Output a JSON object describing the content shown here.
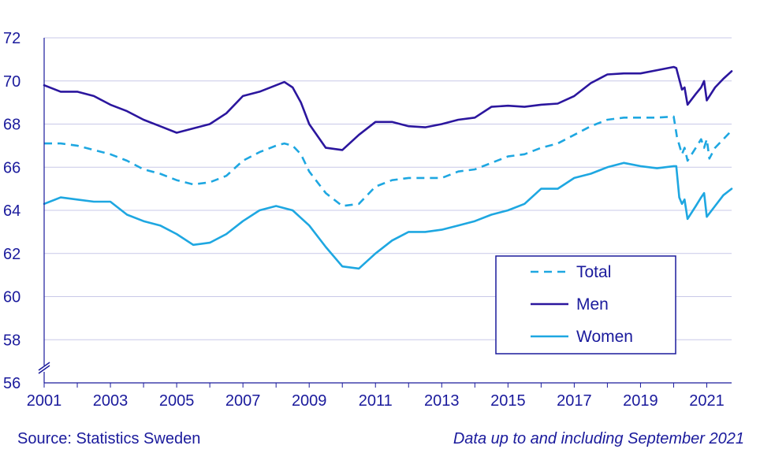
{
  "chart_data": {
    "type": "line",
    "title": "",
    "xlabel": "",
    "ylabel": "",
    "ylim": [
      56,
      72
    ],
    "xlim": [
      2001,
      2021.75
    ],
    "y_ticks": [
      "56",
      "58",
      "60",
      "62",
      "64",
      "66",
      "68",
      "70",
      "72"
    ],
    "x_ticks": [
      "2001",
      "2003",
      "2005",
      "2007",
      "2009",
      "2011",
      "2013",
      "2015",
      "2017",
      "2019",
      "2021"
    ],
    "axis_break": true,
    "grid": "horizontal",
    "legend_position": "lower-right",
    "series": [
      {
        "name": "Total",
        "style": "dashed",
        "color": "#1ea7e1",
        "points": [
          [
            2001.0,
            67.1
          ],
          [
            2001.5,
            67.1
          ],
          [
            2002.0,
            67.0
          ],
          [
            2002.5,
            66.8
          ],
          [
            2003.0,
            66.6
          ],
          [
            2003.5,
            66.3
          ],
          [
            2004.0,
            65.9
          ],
          [
            2004.5,
            65.7
          ],
          [
            2005.0,
            65.4
          ],
          [
            2005.5,
            65.2
          ],
          [
            2006.0,
            65.3
          ],
          [
            2006.5,
            65.6
          ],
          [
            2007.0,
            66.3
          ],
          [
            2007.5,
            66.7
          ],
          [
            2008.0,
            67.0
          ],
          [
            2008.25,
            67.1
          ],
          [
            2008.5,
            67.0
          ],
          [
            2008.75,
            66.6
          ],
          [
            2009.0,
            65.8
          ],
          [
            2009.5,
            64.8
          ],
          [
            2010.0,
            64.2
          ],
          [
            2010.5,
            64.3
          ],
          [
            2011.0,
            65.1
          ],
          [
            2011.5,
            65.4
          ],
          [
            2012.0,
            65.5
          ],
          [
            2012.5,
            65.5
          ],
          [
            2013.0,
            65.5
          ],
          [
            2013.5,
            65.8
          ],
          [
            2014.0,
            65.9
          ],
          [
            2014.5,
            66.2
          ],
          [
            2015.0,
            66.5
          ],
          [
            2015.5,
            66.6
          ],
          [
            2016.0,
            66.9
          ],
          [
            2016.5,
            67.1
          ],
          [
            2017.0,
            67.5
          ],
          [
            2017.5,
            67.9
          ],
          [
            2018.0,
            68.2
          ],
          [
            2018.5,
            68.3
          ],
          [
            2019.0,
            68.3
          ],
          [
            2019.5,
            68.3
          ],
          [
            2020.0,
            68.35
          ],
          [
            2020.1,
            67.4
          ],
          [
            2020.25,
            66.6
          ],
          [
            2020.33,
            66.9
          ],
          [
            2020.42,
            66.3
          ],
          [
            2020.67,
            66.9
          ],
          [
            2020.83,
            67.3
          ],
          [
            2020.92,
            66.9
          ],
          [
            2021.0,
            67.3
          ],
          [
            2021.08,
            66.4
          ],
          [
            2021.25,
            66.9
          ],
          [
            2021.5,
            67.3
          ],
          [
            2021.75,
            67.7
          ]
        ]
      },
      {
        "name": "Men",
        "style": "solid",
        "color": "#2b169e",
        "points": [
          [
            2001.0,
            69.8
          ],
          [
            2001.5,
            69.5
          ],
          [
            2002.0,
            69.5
          ],
          [
            2002.5,
            69.3
          ],
          [
            2003.0,
            68.9
          ],
          [
            2003.5,
            68.6
          ],
          [
            2004.0,
            68.2
          ],
          [
            2004.5,
            67.9
          ],
          [
            2005.0,
            67.6
          ],
          [
            2005.5,
            67.8
          ],
          [
            2006.0,
            68.0
          ],
          [
            2006.5,
            68.5
          ],
          [
            2007.0,
            69.3
          ],
          [
            2007.5,
            69.5
          ],
          [
            2008.0,
            69.8
          ],
          [
            2008.25,
            69.95
          ],
          [
            2008.5,
            69.7
          ],
          [
            2008.75,
            69.0
          ],
          [
            2009.0,
            68.0
          ],
          [
            2009.5,
            66.9
          ],
          [
            2010.0,
            66.8
          ],
          [
            2010.5,
            67.5
          ],
          [
            2011.0,
            68.1
          ],
          [
            2011.5,
            68.1
          ],
          [
            2012.0,
            67.9
          ],
          [
            2012.5,
            67.85
          ],
          [
            2013.0,
            68.0
          ],
          [
            2013.5,
            68.2
          ],
          [
            2014.0,
            68.3
          ],
          [
            2014.5,
            68.8
          ],
          [
            2015.0,
            68.85
          ],
          [
            2015.5,
            68.8
          ],
          [
            2016.0,
            68.9
          ],
          [
            2016.5,
            68.95
          ],
          [
            2017.0,
            69.3
          ],
          [
            2017.5,
            69.9
          ],
          [
            2018.0,
            70.3
          ],
          [
            2018.5,
            70.35
          ],
          [
            2019.0,
            70.35
          ],
          [
            2019.5,
            70.5
          ],
          [
            2020.0,
            70.65
          ],
          [
            2020.08,
            70.6
          ],
          [
            2020.25,
            69.6
          ],
          [
            2020.33,
            69.7
          ],
          [
            2020.42,
            68.9
          ],
          [
            2020.67,
            69.4
          ],
          [
            2020.83,
            69.7
          ],
          [
            2020.92,
            70.0
          ],
          [
            2021.0,
            69.1
          ],
          [
            2021.25,
            69.7
          ],
          [
            2021.5,
            70.1
          ],
          [
            2021.75,
            70.45
          ]
        ]
      },
      {
        "name": "Women",
        "style": "solid",
        "color": "#1ea7e1",
        "points": [
          [
            2001.0,
            64.3
          ],
          [
            2001.5,
            64.6
          ],
          [
            2002.0,
            64.5
          ],
          [
            2002.5,
            64.4
          ],
          [
            2003.0,
            64.4
          ],
          [
            2003.5,
            63.8
          ],
          [
            2004.0,
            63.5
          ],
          [
            2004.5,
            63.3
          ],
          [
            2005.0,
            62.9
          ],
          [
            2005.5,
            62.4
          ],
          [
            2006.0,
            62.5
          ],
          [
            2006.5,
            62.9
          ],
          [
            2007.0,
            63.5
          ],
          [
            2007.5,
            64.0
          ],
          [
            2008.0,
            64.2
          ],
          [
            2008.5,
            64.0
          ],
          [
            2009.0,
            63.3
          ],
          [
            2009.5,
            62.3
          ],
          [
            2010.0,
            61.4
          ],
          [
            2010.5,
            61.3
          ],
          [
            2011.0,
            62.0
          ],
          [
            2011.5,
            62.6
          ],
          [
            2012.0,
            63.0
          ],
          [
            2012.5,
            63.0
          ],
          [
            2013.0,
            63.1
          ],
          [
            2013.5,
            63.3
          ],
          [
            2014.0,
            63.5
          ],
          [
            2014.5,
            63.8
          ],
          [
            2015.0,
            64.0
          ],
          [
            2015.5,
            64.3
          ],
          [
            2016.0,
            65.0
          ],
          [
            2016.5,
            65.0
          ],
          [
            2017.0,
            65.5
          ],
          [
            2017.5,
            65.7
          ],
          [
            2018.0,
            66.0
          ],
          [
            2018.5,
            66.2
          ],
          [
            2019.0,
            66.05
          ],
          [
            2019.5,
            65.95
          ],
          [
            2020.0,
            66.05
          ],
          [
            2020.08,
            66.05
          ],
          [
            2020.17,
            64.6
          ],
          [
            2020.25,
            64.3
          ],
          [
            2020.33,
            64.5
          ],
          [
            2020.42,
            63.6
          ],
          [
            2020.67,
            64.2
          ],
          [
            2020.83,
            64.6
          ],
          [
            2020.92,
            64.8
          ],
          [
            2021.0,
            63.7
          ],
          [
            2021.25,
            64.2
          ],
          [
            2021.5,
            64.7
          ],
          [
            2021.75,
            65.0
          ]
        ]
      }
    ]
  },
  "footer": {
    "source": "Source: Statistics Sweden",
    "note": "Data up to and including September 2021"
  },
  "colors": {
    "axis": "#1a1a9c",
    "grid": "#c9c9e8",
    "men": "#2b169e",
    "women": "#1ea7e1",
    "total": "#1ea7e1"
  }
}
